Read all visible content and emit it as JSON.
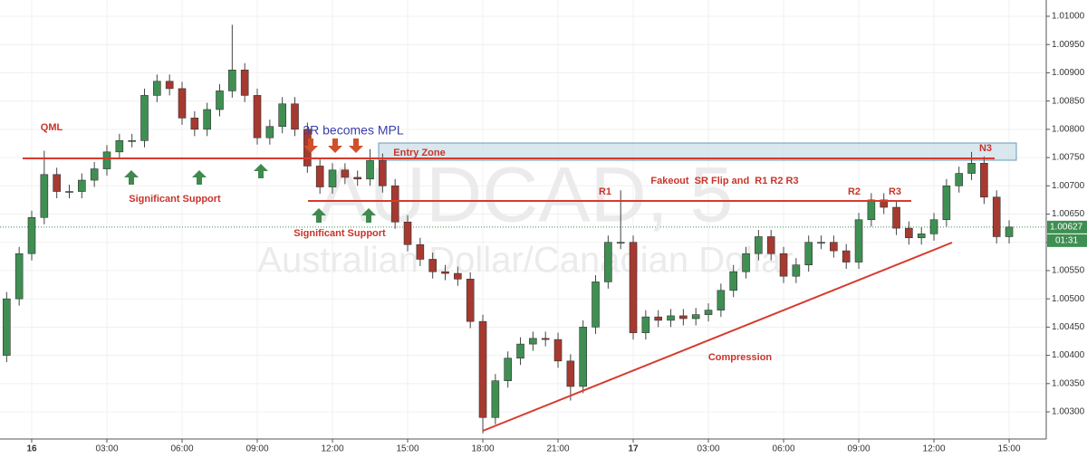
{
  "chart_data": {
    "type": "candlestick",
    "symbol_watermark": "AUDCAD, 5",
    "name_watermark": "Australian Dollar/Canadian Dollar",
    "annotations": {
      "qml": "QML",
      "support_left": "Significant Support",
      "support_mid": "Significant Support",
      "mpl": "3R becomes MPL",
      "entry_zone": "Entry Zone",
      "n3": "N3",
      "fakeout": "Fakeout  SR Flip and  R1 R2 R3",
      "r1": "R1",
      "r2": "R2",
      "r3": "R3",
      "compression": "Compression"
    },
    "last_price": 1.00627,
    "countdown": "01:31",
    "up_color": "#3f8f52",
    "down_color": "#a63a30",
    "grid": true,
    "xlim": [
      -1.265,
      40.48
    ],
    "xticks": [
      {
        "value": 0,
        "label": "16"
      },
      {
        "value": 3,
        "label": "03:00"
      },
      {
        "value": 6,
        "label": "06:00"
      },
      {
        "value": 9,
        "label": "09:00"
      },
      {
        "value": 12,
        "label": "12:00"
      },
      {
        "value": 15,
        "label": "15:00"
      },
      {
        "value": 18,
        "label": "18:00"
      },
      {
        "value": 21,
        "label": "21:00"
      },
      {
        "value": 24,
        "label": "17"
      },
      {
        "value": 27,
        "label": "03:00"
      },
      {
        "value": 30,
        "label": "06:00"
      },
      {
        "value": 33,
        "label": "09:00"
      },
      {
        "value": 36,
        "label": "12:00"
      },
      {
        "value": 39,
        "label": "15:00"
      }
    ],
    "ylim": [
      1.00252,
      1.010288
    ],
    "yticks": [
      {
        "value": 1.003,
        "label": "1.00300"
      },
      {
        "value": 1.0035,
        "label": "1.00350"
      },
      {
        "value": 1.004,
        "label": "1.00400"
      },
      {
        "value": 1.0045,
        "label": "1.00450"
      },
      {
        "value": 1.005,
        "label": "1.00500"
      },
      {
        "value": 1.0055,
        "label": "1.00550"
      },
      {
        "value": 1.006,
        "label": "1.00600"
      },
      {
        "value": 1.0065,
        "label": "1.00650"
      },
      {
        "value": 1.007,
        "label": "1.00700"
      },
      {
        "value": 1.0075,
        "label": "1.00750"
      },
      {
        "value": 1.008,
        "label": "1.00800"
      },
      {
        "value": 1.0085,
        "label": "1.00850"
      },
      {
        "value": 1.009,
        "label": "1.00900"
      },
      {
        "value": 1.0095,
        "label": "1.00950"
      },
      {
        "value": 1.01,
        "label": "1.01000"
      }
    ],
    "x": [
      -1,
      -0.5,
      0,
      0.5,
      1,
      1.5,
      2,
      2.5,
      3,
      3.5,
      4,
      4.5,
      5,
      5.5,
      6,
      6.5,
      7,
      7.5,
      8,
      8.5,
      9,
      9.5,
      10,
      10.5,
      11,
      11.5,
      12,
      12.5,
      13,
      13.5,
      14,
      14.5,
      15,
      15.5,
      16,
      16.5,
      17,
      17.5,
      18,
      18.5,
      19,
      19.5,
      20,
      20.5,
      21,
      21.5,
      22,
      22.5,
      23,
      23.5,
      24,
      24.5,
      25,
      25.5,
      26,
      26.5,
      27,
      27.5,
      28,
      28.5,
      29,
      29.5,
      30,
      30.5,
      31,
      31.5,
      32,
      32.5,
      33,
      33.5,
      34,
      34.5,
      35,
      35.5,
      36,
      36.5,
      37,
      37.5,
      38,
      38.5,
      39
    ],
    "open": [
      1.004,
      1.005,
      1.0058,
      1.00644,
      1.0072,
      1.0069,
      1.0069,
      1.0071,
      1.0073,
      1.0076,
      1.0078,
      1.0078,
      1.0086,
      1.00885,
      1.00872,
      1.0082,
      1.008,
      1.00835,
      1.00868,
      1.00905,
      1.0086,
      1.00785,
      1.00805,
      1.00845,
      1.008,
      1.00735,
      1.00698,
      1.00728,
      1.00715,
      1.00712,
      1.00745,
      1.007,
      1.00636,
      1.00596,
      1.0057,
      1.00548,
      1.00545,
      1.00535,
      1.0046,
      1.0029,
      1.00355,
      1.00395,
      1.0042,
      1.0043,
      1.00428,
      1.0039,
      1.00345,
      1.0045,
      1.0053,
      1.006,
      1.006,
      1.0044,
      1.00468,
      1.00462,
      1.0047,
      1.00465,
      1.00472,
      1.0048,
      1.00515,
      1.00548,
      1.0058,
      1.0061,
      1.0058,
      1.0054,
      1.0056,
      1.006,
      1.006,
      1.00585,
      1.00565,
      1.0064,
      1.00675,
      1.00662,
      1.00625,
      1.00608,
      1.00615,
      1.0064,
      1.007,
      1.00722,
      1.0074,
      1.0068,
      1.0061
    ],
    "high": [
      1.00512,
      1.00592,
      1.00656,
      1.00762,
      1.00732,
      1.00702,
      1.00722,
      1.00742,
      1.00772,
      1.00792,
      1.00792,
      1.00872,
      1.00897,
      1.00897,
      1.00884,
      1.00832,
      1.00847,
      1.0088,
      1.00985,
      1.00917,
      1.00872,
      1.00817,
      1.00857,
      1.00857,
      1.00812,
      1.00747,
      1.0074,
      1.0074,
      1.00727,
      1.00765,
      1.00757,
      1.00712,
      1.00648,
      1.00608,
      1.00582,
      1.0056,
      1.00557,
      1.00547,
      1.00472,
      1.00367,
      1.00407,
      1.00432,
      1.00442,
      1.00442,
      1.0044,
      1.00402,
      1.00462,
      1.00542,
      1.00612,
      1.00692,
      1.00612,
      1.0048,
      1.0048,
      1.00482,
      1.00482,
      1.00484,
      1.00492,
      1.00527,
      1.0056,
      1.00592,
      1.00622,
      1.00622,
      1.00592,
      1.00572,
      1.00612,
      1.00612,
      1.00612,
      1.00597,
      1.00652,
      1.00687,
      1.00687,
      1.00674,
      1.00637,
      1.00627,
      1.00652,
      1.00712,
      1.00734,
      1.0076,
      1.00752,
      1.00692,
      1.00639
    ],
    "low": [
      1.00388,
      1.00488,
      1.00568,
      1.00632,
      1.00678,
      1.00678,
      1.00678,
      1.00698,
      1.00718,
      1.00748,
      1.00768,
      1.00768,
      1.00848,
      1.0086,
      1.00808,
      1.00788,
      1.00788,
      1.00823,
      1.00856,
      1.00848,
      1.00773,
      1.00773,
      1.00793,
      1.00788,
      1.00723,
      1.00686,
      1.00686,
      1.00703,
      1.007,
      1.007,
      1.00688,
      1.00624,
      1.00584,
      1.00558,
      1.00536,
      1.00533,
      1.00523,
      1.00448,
      1.00262,
      1.00278,
      1.00343,
      1.00383,
      1.00408,
      1.00416,
      1.00378,
      1.0032,
      1.00333,
      1.00438,
      1.00518,
      1.00588,
      1.00428,
      1.00428,
      1.0045,
      1.0045,
      1.00453,
      1.00453,
      1.0046,
      1.00468,
      1.00503,
      1.00536,
      1.00568,
      1.00568,
      1.00528,
      1.00528,
      1.00548,
      1.00588,
      1.00573,
      1.00553,
      1.00553,
      1.00628,
      1.0065,
      1.00613,
      1.00596,
      1.00596,
      1.00603,
      1.00628,
      1.00688,
      1.0071,
      1.00668,
      1.00598,
      1.00598
    ],
    "close": [
      1.005,
      1.0058,
      1.00644,
      1.0072,
      1.0069,
      1.0069,
      1.0071,
      1.0073,
      1.0076,
      1.0078,
      1.0078,
      1.0086,
      1.00885,
      1.00872,
      1.0082,
      1.008,
      1.00835,
      1.00868,
      1.00905,
      1.0086,
      1.00785,
      1.00805,
      1.00845,
      1.008,
      1.00735,
      1.00698,
      1.00728,
      1.00715,
      1.00712,
      1.00745,
      1.007,
      1.00636,
      1.00596,
      1.0057,
      1.00548,
      1.00545,
      1.00535,
      1.0046,
      1.0029,
      1.00355,
      1.00395,
      1.0042,
      1.0043,
      1.00428,
      1.0039,
      1.00345,
      1.0045,
      1.0053,
      1.006,
      1.006,
      1.0044,
      1.00468,
      1.00462,
      1.0047,
      1.00465,
      1.00472,
      1.0048,
      1.00515,
      1.00548,
      1.0058,
      1.0061,
      1.0058,
      1.0054,
      1.0056,
      1.006,
      1.006,
      1.00585,
      1.00565,
      1.0064,
      1.00675,
      1.00662,
      1.00625,
      1.00608,
      1.00615,
      1.0064,
      1.007,
      1.00722,
      1.0074,
      1.0068,
      1.0061,
      1.00627
    ]
  }
}
